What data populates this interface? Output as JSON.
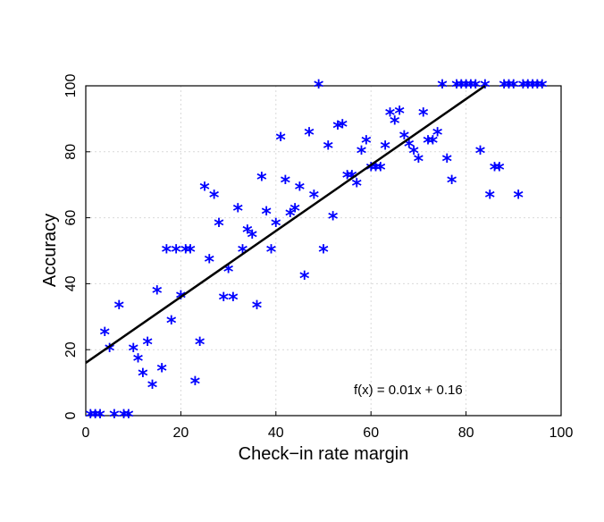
{
  "chart_data": {
    "type": "scatter",
    "title": "",
    "xlabel": "Check−in rate margin",
    "ylabel": "Accuracy",
    "xlim": [
      0,
      100
    ],
    "ylim": [
      0,
      100
    ],
    "xticks": [
      "0",
      "20",
      "40",
      "60",
      "80",
      "100"
    ],
    "yticks": [
      "0",
      "20",
      "40",
      "60",
      "80",
      "100"
    ],
    "grid": true,
    "marker": "*",
    "marker_color": "#0000ff",
    "line_color": "#000000",
    "annotation": "f(x) = 0.01x + 0.16",
    "fit_line": {
      "x": [
        0,
        84
      ],
      "y": [
        16,
        100
      ]
    },
    "series": [
      {
        "points": [
          [
            1,
            0
          ],
          [
            2,
            0
          ],
          [
            3,
            0
          ],
          [
            6,
            0
          ],
          [
            8,
            0
          ],
          [
            9,
            0
          ],
          [
            4,
            25
          ],
          [
            5,
            20
          ],
          [
            7,
            33
          ],
          [
            10,
            20
          ],
          [
            11,
            17
          ],
          [
            12,
            12.5
          ],
          [
            13,
            22
          ],
          [
            14,
            9
          ],
          [
            15,
            37.5
          ],
          [
            16,
            14
          ],
          [
            17,
            50
          ],
          [
            18,
            28.5
          ],
          [
            19,
            50
          ],
          [
            20,
            36
          ],
          [
            21,
            50
          ],
          [
            22,
            50
          ],
          [
            23,
            10
          ],
          [
            24,
            22
          ],
          [
            25,
            69
          ],
          [
            26,
            47
          ],
          [
            27,
            66.5
          ],
          [
            28,
            58
          ],
          [
            29,
            35.5
          ],
          [
            30,
            44
          ],
          [
            31,
            35.5
          ],
          [
            32,
            62.5
          ],
          [
            33,
            50
          ],
          [
            34,
            56
          ],
          [
            35,
            54.5
          ],
          [
            36,
            33
          ],
          [
            37,
            72
          ],
          [
            38,
            61.5
          ],
          [
            39,
            50
          ],
          [
            40,
            58
          ],
          [
            41,
            84
          ],
          [
            42,
            71
          ],
          [
            43,
            61
          ],
          [
            44,
            62.5
          ],
          [
            45,
            69
          ],
          [
            46,
            42
          ],
          [
            47,
            85.5
          ],
          [
            48,
            66.5
          ],
          [
            49,
            100
          ],
          [
            50,
            50
          ],
          [
            51,
            81.5
          ],
          [
            52,
            60
          ],
          [
            53,
            87.5
          ],
          [
            54,
            88
          ],
          [
            55,
            72.5
          ],
          [
            56,
            72.5
          ],
          [
            57,
            70
          ],
          [
            58,
            80
          ],
          [
            59,
            83
          ],
          [
            60,
            75
          ],
          [
            61,
            75
          ],
          [
            62,
            75
          ],
          [
            63,
            81.5
          ],
          [
            64,
            91.5
          ],
          [
            65,
            89
          ],
          [
            66,
            92
          ],
          [
            67,
            84.5
          ],
          [
            68,
            82
          ],
          [
            69,
            80
          ],
          [
            70,
            77.5
          ],
          [
            71,
            91.5
          ],
          [
            72,
            83
          ],
          [
            73,
            83
          ],
          [
            74,
            85.5
          ],
          [
            75,
            100
          ],
          [
            76,
            77.5
          ],
          [
            77,
            71
          ],
          [
            78,
            100
          ],
          [
            79,
            100
          ],
          [
            80,
            100
          ],
          [
            81,
            100
          ],
          [
            82,
            100
          ],
          [
            83,
            80
          ],
          [
            84,
            100
          ],
          [
            85,
            66.5
          ],
          [
            86,
            75
          ],
          [
            87,
            75
          ],
          [
            88,
            100
          ],
          [
            89,
            100
          ],
          [
            90,
            100
          ],
          [
            91,
            66.5
          ],
          [
            92,
            100
          ],
          [
            93,
            100
          ],
          [
            94,
            100
          ],
          [
            95,
            100
          ],
          [
            96,
            100
          ]
        ]
      }
    ]
  }
}
